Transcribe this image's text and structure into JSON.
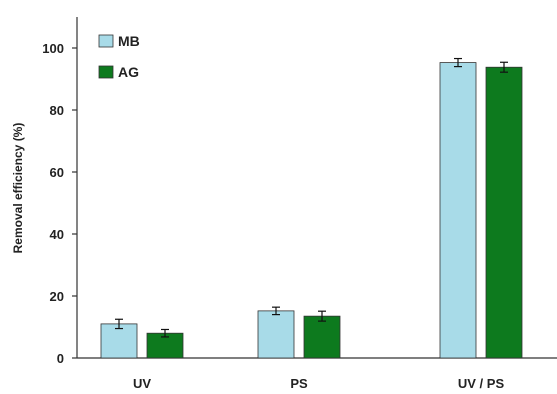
{
  "chart_data": {
    "type": "bar",
    "title": "",
    "xlabel": "",
    "ylabel": "Removal efficiency (%)",
    "ylim": [
      0,
      100
    ],
    "yticks": [
      "0",
      "20",
      "40",
      "60",
      "80",
      "100"
    ],
    "categories": [
      "UV",
      "PS",
      "UV / PS"
    ],
    "grid": false,
    "legend_position": "top-left",
    "series": [
      {
        "name": "MB",
        "color": "#a8dbe8",
        "values": [
          11,
          15.2,
          95.3
        ],
        "errors": [
          1.5,
          1.2,
          1.3
        ]
      },
      {
        "name": "AG",
        "color": "#0d7a1e",
        "values": [
          8,
          13.5,
          93.8
        ],
        "errors": [
          1.2,
          1.6,
          1.6
        ]
      }
    ]
  }
}
